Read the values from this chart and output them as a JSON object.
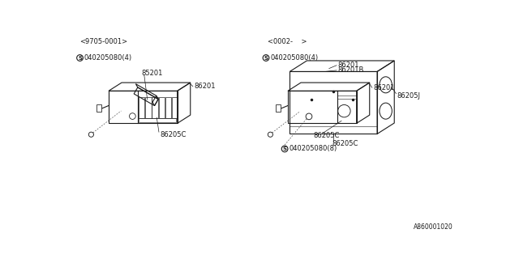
{
  "bg_color": "#ffffff",
  "line_color": "#1a1a1a",
  "text_color": "#1a1a1a",
  "fig_width": 6.4,
  "fig_height": 3.2,
  "dpi": 100,
  "diagram_id": "A860001020",
  "labels": {
    "top_left_ref": "<9705-0001>",
    "top_right_ref": "<0002-    >",
    "tl_part1": "86201",
    "tl_part2": "86205C",
    "tl_screw_label": "040205080(4)",
    "tr_part1": "86201",
    "tr_part2": "86205C",
    "tr_screw_label": "040205080(4)",
    "bl_part1": "85201",
    "br_part1": "86201",
    "br_part2": "86201B",
    "br_part3": "86205J",
    "br_part4": "86205C",
    "br_screw_label": "040205080(8)"
  }
}
